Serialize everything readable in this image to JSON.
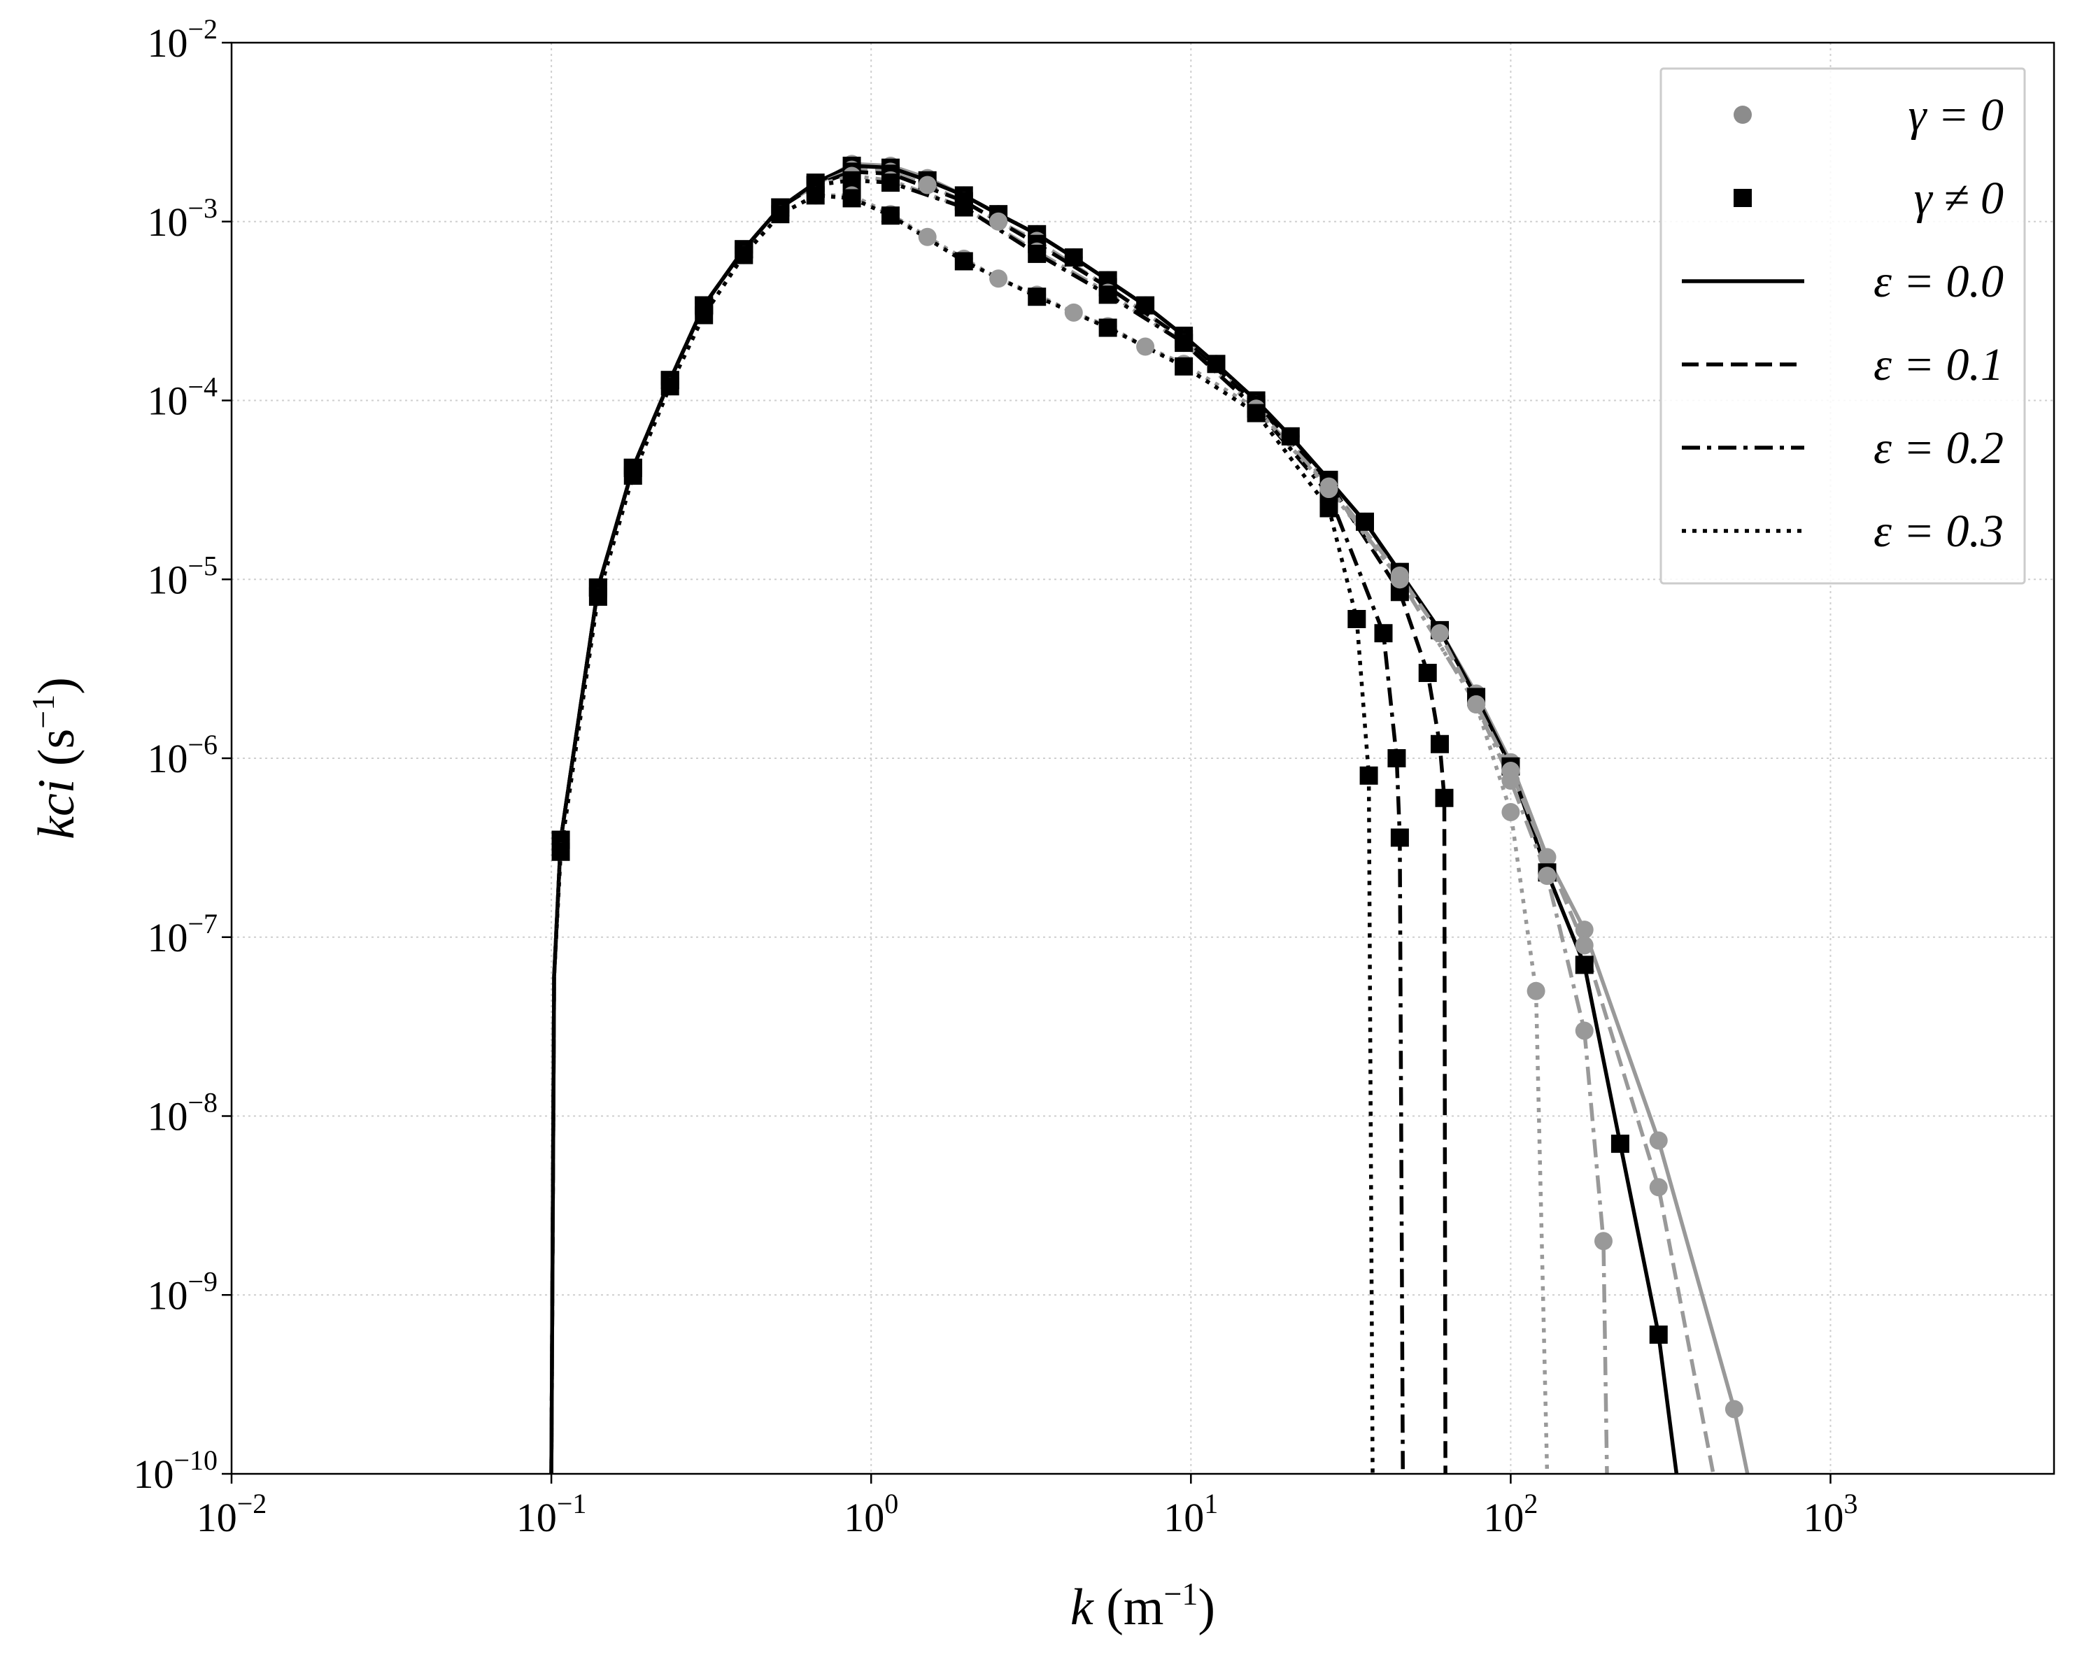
{
  "chart_data": {
    "type": "line",
    "xlabel": "k (m−1)",
    "ylabel": "kci (s−1)",
    "xscale": "log",
    "yscale": "log",
    "grid": true,
    "xlim": [
      0.01,
      5000
    ],
    "ylim": [
      1e-10,
      0.01
    ],
    "xticks": [
      {
        "value": 0.01,
        "label": "10−2"
      },
      {
        "value": 0.1,
        "label": "10−1"
      },
      {
        "value": 1,
        "label": "100"
      },
      {
        "value": 10,
        "label": "101"
      },
      {
        "value": 100,
        "label": "102"
      },
      {
        "value": 1000,
        "label": "103"
      }
    ],
    "yticks": [
      {
        "value": 1e-10,
        "label": "10−10"
      },
      {
        "value": 1e-09,
        "label": "10−9"
      },
      {
        "value": 1e-08,
        "label": "10−8"
      },
      {
        "value": 1e-07,
        "label": "10−7"
      },
      {
        "value": 1e-06,
        "label": "10−6"
      },
      {
        "value": 1e-05,
        "label": "10−5"
      },
      {
        "value": 0.0001,
        "label": "10−4"
      },
      {
        "value": 0.001,
        "label": "10−3"
      },
      {
        "value": 0.01,
        "label": "10−2"
      }
    ],
    "legend_position": "upper right",
    "legend": [
      {
        "label": "γ = 0",
        "marker": "circle",
        "color": "#8c8c8c"
      },
      {
        "label": "γ ≠ 0",
        "marker": "square",
        "color": "#000000"
      },
      {
        "label": "ε = 0.0",
        "dash": "solid",
        "color": "#000000"
      },
      {
        "label": "ε = 0.1",
        "dash": "dashed",
        "color": "#000000"
      },
      {
        "label": "ε = 0.2",
        "dash": "dashdot",
        "color": "#000000"
      },
      {
        "label": "ε = 0.3",
        "dash": "dotted",
        "color": "#000000"
      }
    ],
    "series": [
      {
        "color": "#999999",
        "dash": "solid",
        "marker": "circle",
        "x": [
          0.1,
          0.102,
          0.107,
          0.14,
          0.18,
          0.235,
          0.3,
          0.4,
          0.52,
          0.67,
          0.87,
          1.15,
          1.5,
          1.95,
          2.5,
          3.3,
          4.3,
          5.5,
          7.2,
          9.5,
          12,
          16,
          20.5,
          27,
          35,
          45,
          60,
          78,
          100,
          130,
          170,
          290,
          500,
          550
        ],
        "values": [
          1e-10,
          6e-08,
          3.5e-07,
          9e-06,
          4.2e-05,
          0.00013,
          0.00034,
          0.0007,
          0.0012,
          0.0016,
          0.0021,
          0.00205,
          0.00175,
          0.0014,
          0.0011,
          0.00085,
          0.00063,
          0.00047,
          0.00034,
          0.00023,
          0.00016,
          0.0001,
          6.3e-05,
          3.6e-05,
          2.1e-05,
          1.1e-05,
          5.2e-06,
          2.3e-06,
          9.5e-07,
          2.8e-07,
          1.1e-07,
          7.3e-09,
          2.3e-10,
          1e-10
        ]
      },
      {
        "color": "#000000",
        "dash": "solid",
        "marker": "square",
        "x": [
          0.1,
          0.102,
          0.107,
          0.14,
          0.18,
          0.235,
          0.3,
          0.4,
          0.52,
          0.67,
          0.87,
          1.15,
          1.5,
          1.95,
          2.5,
          3.3,
          4.3,
          5.5,
          7.2,
          9.5,
          12,
          16,
          20.5,
          27,
          35,
          45,
          60,
          78,
          100,
          130,
          170,
          220,
          290,
          330
        ],
        "values": [
          1e-10,
          6e-08,
          3.5e-07,
          9e-06,
          4.2e-05,
          0.00013,
          0.00034,
          0.0007,
          0.0012,
          0.00165,
          0.00205,
          0.002,
          0.0017,
          0.0014,
          0.0011,
          0.00085,
          0.00063,
          0.00047,
          0.00034,
          0.00023,
          0.00016,
          0.0001,
          6.3e-05,
          3.6e-05,
          2.1e-05,
          1.1e-05,
          5.2e-06,
          2.2e-06,
          9e-07,
          2.3e-07,
          7e-08,
          7e-09,
          6e-10,
          1e-10
        ]
      },
      {
        "color": "#999999",
        "dash": "dashed",
        "marker": "circle",
        "x": [
          0.1,
          0.102,
          0.107,
          0.14,
          0.18,
          0.235,
          0.3,
          0.4,
          0.52,
          0.67,
          0.87,
          1.15,
          1.5,
          1.95,
          2.5,
          3.3,
          5.5,
          9.5,
          16,
          27,
          45,
          60,
          100,
          170,
          290,
          430
        ],
        "values": [
          1e-10,
          6e-08,
          3.5e-07,
          9e-06,
          4.2e-05,
          0.00013,
          0.00034,
          0.0007,
          0.0012,
          0.0016,
          0.00195,
          0.0019,
          0.0016,
          0.0013,
          0.001,
          0.00078,
          0.00043,
          0.00022,
          9.5e-05,
          3.4e-05,
          1.05e-05,
          5e-06,
          8.5e-07,
          9e-08,
          4e-09,
          1e-10
        ]
      },
      {
        "color": "#000000",
        "dash": "dashed",
        "marker": "square",
        "x": [
          0.1,
          0.102,
          0.107,
          0.14,
          0.18,
          0.235,
          0.3,
          0.4,
          0.52,
          0.67,
          0.87,
          1.15,
          1.95,
          3.3,
          5.5,
          9.5,
          16,
          27,
          45,
          55,
          60,
          62,
          62.5
        ],
        "values": [
          1e-10,
          6e-08,
          3.5e-07,
          9e-06,
          4.2e-05,
          0.00013,
          0.00034,
          0.0007,
          0.0012,
          0.0016,
          0.0019,
          0.00185,
          0.0013,
          0.00075,
          0.00043,
          0.00022,
          9.5e-05,
          3.5e-05,
          8.5e-06,
          3e-06,
          1.2e-06,
          6e-07,
          1e-10
        ]
      },
      {
        "color": "#999999",
        "dash": "dashdot",
        "marker": "circle",
        "x": [
          0.1,
          0.102,
          0.107,
          0.14,
          0.18,
          0.235,
          0.3,
          0.4,
          0.52,
          0.67,
          0.87,
          1.15,
          1.95,
          3.3,
          5.5,
          9.5,
          16,
          27,
          45,
          78,
          100,
          130,
          170,
          195,
          200
        ],
        "values": [
          1e-10,
          6e-08,
          3.5e-07,
          9e-06,
          4.2e-05,
          0.00013,
          0.00034,
          0.0007,
          0.0012,
          0.0016,
          0.0018,
          0.0017,
          0.0012,
          0.00068,
          0.0004,
          0.00021,
          9e-05,
          3.3e-05,
          1e-05,
          2e-06,
          7.5e-07,
          2.2e-07,
          3e-08,
          2e-09,
          1e-10
        ]
      },
      {
        "color": "#000000",
        "dash": "dashdot",
        "marker": "square",
        "x": [
          0.1,
          0.102,
          0.107,
          0.14,
          0.18,
          0.235,
          0.3,
          0.4,
          0.52,
          0.67,
          0.87,
          1.15,
          1.95,
          3.3,
          5.5,
          9.5,
          16,
          27,
          40,
          44,
          45,
          46
        ],
        "values": [
          1e-10,
          6e-08,
          3.5e-07,
          9e-06,
          4.2e-05,
          0.00013,
          0.00034,
          0.0007,
          0.0012,
          0.0016,
          0.0017,
          0.00165,
          0.0012,
          0.00066,
          0.00039,
          0.00021,
          9e-05,
          3e-05,
          5e-06,
          1e-06,
          3.6e-07,
          1e-10
        ]
      },
      {
        "color": "#999999",
        "dash": "dotted",
        "marker": "circle",
        "x": [
          0.1,
          0.102,
          0.107,
          0.14,
          0.18,
          0.235,
          0.3,
          0.4,
          0.52,
          0.67,
          0.87,
          1.15,
          1.5,
          1.95,
          2.5,
          3.3,
          4.3,
          5.5,
          7.2,
          9.5,
          16,
          27,
          45,
          78,
          100,
          120,
          130
        ],
        "values": [
          1e-10,
          6e-08,
          3e-07,
          8e-06,
          3.8e-05,
          0.00012,
          0.0003,
          0.00065,
          0.0011,
          0.0014,
          0.0014,
          0.0011,
          0.00082,
          0.00062,
          0.00048,
          0.00039,
          0.00031,
          0.00026,
          0.0002,
          0.00016,
          9e-05,
          3.2e-05,
          1e-05,
          2e-06,
          5e-07,
          5e-08,
          1e-10
        ]
      },
      {
        "color": "#000000",
        "dash": "dotted",
        "marker": "square",
        "x": [
          0.1,
          0.102,
          0.107,
          0.14,
          0.18,
          0.235,
          0.3,
          0.4,
          0.52,
          0.67,
          0.87,
          1.15,
          1.95,
          3.3,
          5.5,
          9.5,
          16,
          27,
          33,
          36,
          37
        ],
        "values": [
          1e-10,
          6e-08,
          3e-07,
          8e-06,
          3.8e-05,
          0.00012,
          0.0003,
          0.00065,
          0.0011,
          0.0014,
          0.00135,
          0.00108,
          0.0006,
          0.00038,
          0.000255,
          0.000155,
          8.5e-05,
          2.5e-05,
          6e-06,
          8e-07,
          1e-10
        ]
      }
    ]
  }
}
